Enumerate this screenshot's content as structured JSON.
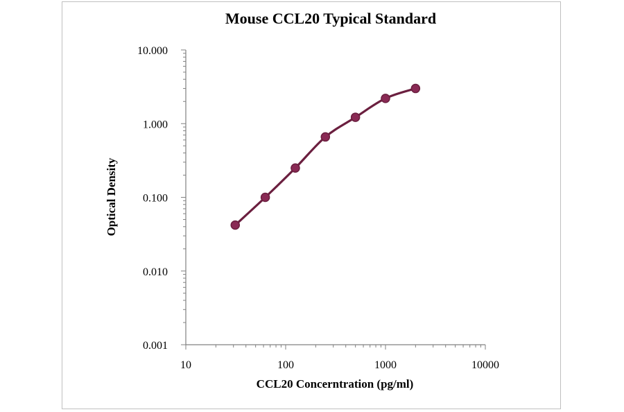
{
  "chart_data": {
    "type": "line",
    "title": "Mouse CCL20 Typical Standard",
    "xlabel": "CCL20 Concerntration (pg/ml)",
    "ylabel": "Optical Density",
    "x_scale": "log",
    "y_scale": "log",
    "xlim": [
      10,
      10000
    ],
    "ylim": [
      0.001,
      10
    ],
    "x_ticks": [
      "10",
      "100",
      "1000",
      "10000"
    ],
    "y_ticks": [
      "10.000",
      "1.000",
      "0.100",
      "0.010",
      "0.001"
    ],
    "grid": false,
    "legend": "none",
    "series": [
      {
        "color": "#6b1f3f",
        "marker_color": "#8a2a55",
        "x": [
          31.25,
          62.5,
          125,
          250,
          500,
          1000,
          2000
        ],
        "y": [
          0.042,
          0.1,
          0.25,
          0.66,
          1.22,
          2.2,
          3.0
        ]
      }
    ]
  }
}
